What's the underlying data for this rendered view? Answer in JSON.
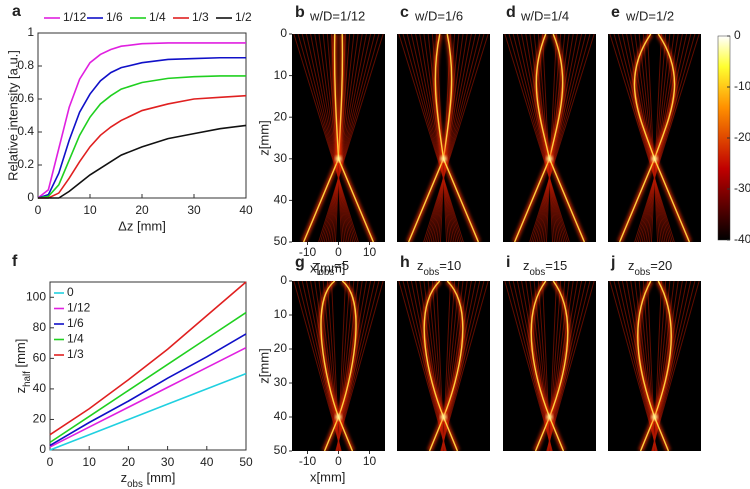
{
  "chart_data": [
    {
      "type": "line",
      "panel": "a",
      "ylabel": "Relative intensity [a.u.]",
      "xlabel": "Δz [mm]",
      "xlim": [
        0,
        40
      ],
      "xticks": [
        0,
        10,
        20,
        30,
        40
      ],
      "ylim": [
        0,
        1
      ],
      "yticks": [
        0,
        0.2,
        0.4,
        0.6,
        0.8,
        1
      ],
      "legend": "top-outside",
      "x": [
        0,
        2,
        4,
        6,
        8,
        10,
        12,
        14,
        16,
        20,
        25,
        30,
        35,
        40
      ],
      "series": [
        {
          "name": "1/12",
          "color": "#e020e0",
          "values": [
            0,
            0.05,
            0.3,
            0.55,
            0.72,
            0.82,
            0.87,
            0.9,
            0.92,
            0.935,
            0.94,
            0.94,
            0.94,
            0.94
          ]
        },
        {
          "name": "1/6",
          "color": "#1010c8",
          "values": [
            0,
            0.02,
            0.15,
            0.35,
            0.52,
            0.63,
            0.71,
            0.76,
            0.79,
            0.82,
            0.84,
            0.845,
            0.85,
            0.85
          ]
        },
        {
          "name": "1/4",
          "color": "#20d020",
          "values": [
            0,
            0.01,
            0.08,
            0.23,
            0.38,
            0.49,
            0.57,
            0.62,
            0.66,
            0.7,
            0.725,
            0.735,
            0.74,
            0.74
          ]
        },
        {
          "name": "1/3",
          "color": "#e02020",
          "values": [
            0,
            0,
            0.03,
            0.12,
            0.22,
            0.31,
            0.38,
            0.43,
            0.47,
            0.53,
            0.57,
            0.6,
            0.61,
            0.62
          ]
        },
        {
          "name": "1/2",
          "color": "#111111",
          "values": [
            0,
            0,
            0,
            0.04,
            0.09,
            0.14,
            0.18,
            0.22,
            0.26,
            0.31,
            0.36,
            0.39,
            0.42,
            0.44
          ]
        }
      ]
    },
    {
      "type": "line",
      "panel": "f",
      "ylabel": [
        "z",
        "half",
        " [mm]"
      ],
      "xlabel": [
        "z",
        "obs",
        " [mm]"
      ],
      "xlim": [
        0,
        50
      ],
      "xticks": [
        0,
        10,
        20,
        30,
        40,
        50
      ],
      "ylim": [
        0,
        110
      ],
      "yticks": [
        0,
        20,
        40,
        60,
        80,
        100
      ],
      "legend": "top-left",
      "x": [
        0,
        10,
        20,
        30,
        40,
        50
      ],
      "series": [
        {
          "name": "0",
          "color": "#20d0e0",
          "values": [
            0,
            10,
            20,
            30,
            40,
            50
          ]
        },
        {
          "name": "1/12",
          "color": "#e020e0",
          "values": [
            2,
            15,
            28,
            41,
            54,
            67
          ]
        },
        {
          "name": "1/6",
          "color": "#1010c8",
          "values": [
            3,
            18,
            32,
            47,
            61,
            76
          ]
        },
        {
          "name": "1/4",
          "color": "#20d020",
          "values": [
            5,
            22,
            39,
            56,
            73,
            90
          ]
        },
        {
          "name": "1/3",
          "color": "#e02020",
          "values": [
            10,
            27,
            46,
            66,
            88,
            110
          ]
        }
      ]
    },
    {
      "type": "heatmap",
      "panel": "b",
      "title": "w/D=1/12",
      "xlim": [
        -15,
        15
      ],
      "ylim": [
        0,
        50
      ],
      "xticks": [
        -10,
        0,
        10
      ],
      "yticks": [
        0,
        10,
        20,
        30,
        40,
        50
      ],
      "xlabel": "x[mm]",
      "ylabel": "z[mm]"
    },
    {
      "type": "heatmap",
      "panel": "c",
      "title": "w/D=1/6",
      "xlim": [
        -15,
        15
      ],
      "ylim": [
        0,
        50
      ]
    },
    {
      "type": "heatmap",
      "panel": "d",
      "title": "w/D=1/4",
      "xlim": [
        -15,
        15
      ],
      "ylim": [
        0,
        50
      ]
    },
    {
      "type": "heatmap",
      "panel": "e",
      "title": "w/D=1/2",
      "xlim": [
        -15,
        15
      ],
      "ylim": [
        0,
        50
      ]
    },
    {
      "type": "heatmap",
      "panel": "g",
      "title": [
        "z",
        "obs",
        "=5"
      ],
      "xlim": [
        -15,
        15
      ],
      "ylim": [
        0,
        50
      ],
      "xticks": [
        -10,
        0,
        10
      ],
      "yticks": [
        0,
        10,
        20,
        30,
        40,
        50
      ],
      "xlabel": "x[mm]",
      "ylabel": "z[mm]"
    },
    {
      "type": "heatmap",
      "panel": "h",
      "title": [
        "z",
        "obs",
        "=10"
      ],
      "xlim": [
        -15,
        15
      ],
      "ylim": [
        0,
        50
      ]
    },
    {
      "type": "heatmap",
      "panel": "i",
      "title": [
        "z",
        "obs",
        "=15"
      ],
      "xlim": [
        -15,
        15
      ],
      "ylim": [
        0,
        50
      ]
    },
    {
      "type": "heatmap",
      "panel": "j",
      "title": [
        "z",
        "obs",
        "=20"
      ],
      "xlim": [
        -15,
        15
      ],
      "ylim": [
        0,
        50
      ]
    },
    {
      "type": "colorbar",
      "ylim": [
        -40,
        0
      ],
      "yticks": [
        0,
        -10,
        -20,
        -30,
        -40
      ]
    }
  ]
}
